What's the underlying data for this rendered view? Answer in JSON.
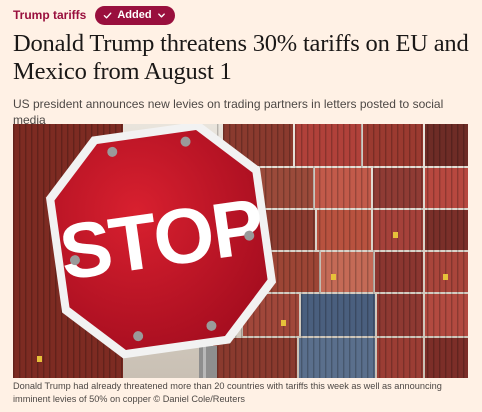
{
  "topic": {
    "label": "Trump tariffs",
    "added_label": "Added",
    "added_icon": "check-icon",
    "dropdown_icon": "chevron-down-icon"
  },
  "article": {
    "headline": "Donald Trump threatens 30% tariffs on EU and Mexico from August 1",
    "standfirst": "US president announces new levies on trading partners in letters posted to social media",
    "image_sign_text": "STOP",
    "caption": "Donald Trump had already threatened more than 20 countries with tariffs this week as well as announcing imminent levies of 50% on copper © Daniel Cole/Reuters"
  },
  "colors": {
    "page_background": "#fff1e5",
    "accent": "#990f3d",
    "headline": "#1a1817",
    "stop_sign_red": "#c8102e"
  }
}
